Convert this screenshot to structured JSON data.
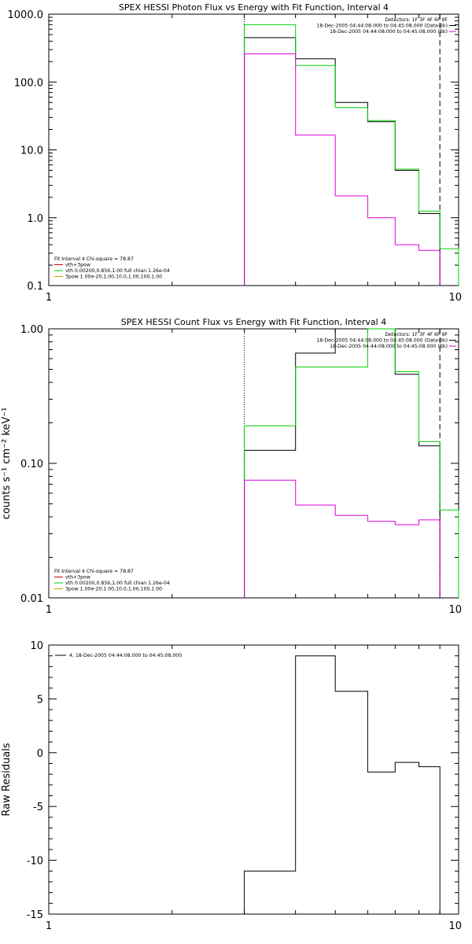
{
  "colors": {
    "observed": "#000000",
    "model": "#00d000",
    "background": "#e000e0",
    "red": "#d00000",
    "orange": "#d0a000"
  },
  "chart_data": [
    {
      "type": "line",
      "title": "SPEX HESSI Photon Flux vs Energy with Fit Function, Interval 4",
      "xlabel": "",
      "ylabel": "",
      "xscale": "log",
      "yscale": "log",
      "xlim": [
        1,
        10
      ],
      "ylim": [
        0.1,
        1000
      ],
      "x_tick_labels": [
        "1",
        "10"
      ],
      "y_tick_labels": [
        "0.1",
        "1.0",
        "10.0",
        "100.0",
        "1000.0"
      ],
      "edges": [
        3,
        4,
        5,
        6,
        7,
        8,
        9,
        10
      ],
      "vlines": [
        {
          "x": 3,
          "style": "dotted"
        },
        {
          "x": 9,
          "style": "dashed"
        }
      ],
      "series": [
        {
          "name": "black",
          "values": [
            450,
            220,
            50,
            26,
            5.0,
            1.15
          ]
        },
        {
          "name": "green",
          "values": [
            700,
            175,
            42,
            27,
            5.2,
            1.25,
            0.35
          ]
        },
        {
          "name": "magenta",
          "values": [
            260,
            16.5,
            2.1,
            1.0,
            0.4,
            0.33
          ]
        }
      ],
      "legend_top": [
        "Detectors: 1F 3F 4F 6F 9F",
        "18-Dec-2005 04:44:08.000 to 04:45:08.000 (Data-Bk)",
        "18-Dec-2005 04:44:08.000 to 04:45:08.000 (Bk)"
      ],
      "legend_bottom": [
        "Fit Interval 4   Chi-square = 78.87",
        "vth+3pow",
        "vth 0.00200,0.856,1.00   full chian 1.26e-04",
        "3pow 1.00e-20,1.00,10.0,1.00,100,1.00"
      ]
    },
    {
      "type": "line",
      "title": "SPEX HESSI Count Flux vs Energy with Fit Function, Interval 4",
      "xlabel": "",
      "ylabel": "counts s⁻¹ cm⁻² keV⁻¹",
      "xscale": "log",
      "yscale": "log",
      "xlim": [
        1,
        10
      ],
      "ylim": [
        0.01,
        1.0
      ],
      "x_tick_labels": [
        "1",
        "10"
      ],
      "y_tick_labels": [
        "0.01",
        "0.10",
        "1.00"
      ],
      "edges": [
        3,
        4,
        5,
        6,
        7,
        8,
        9,
        10
      ],
      "vlines": [
        {
          "x": 3,
          "style": "dotted"
        },
        {
          "x": 9,
          "style": "dashed"
        }
      ],
      "series": [
        {
          "name": "black",
          "values": [
            0.125,
            0.66,
            1.0,
            1.0,
            0.46,
            0.135
          ]
        },
        {
          "name": "green",
          "values": [
            0.19,
            0.52,
            0.52,
            1.0,
            0.48,
            0.145,
            0.045
          ]
        },
        {
          "name": "magenta",
          "values": [
            0.075,
            0.049,
            0.041,
            0.037,
            0.035,
            0.038
          ]
        }
      ],
      "legend_top": [
        "Detectors: 1F 3F 4F 6F 9F",
        "18-Dec-2005 04:44:08.000 to 04:45:08.000 (Data-Bk)",
        "18-Dec-2005 04:44:08.000 to 04:45:08.000 (Bk)"
      ],
      "legend_bottom": [
        "Fit Interval 4   Chi-square = 78.87",
        "vth+3pow",
        "vth 0.00200,0.856,1.00   full chian 1.26e-04",
        "3pow 1.00e-20,1.00,10.0,1.00,100,1.00"
      ]
    },
    {
      "type": "line",
      "title": "",
      "xlabel": "",
      "ylabel": "Raw Residuals",
      "xscale": "log",
      "yscale": "linear",
      "xlim": [
        1,
        10
      ],
      "ylim": [
        -15,
        10
      ],
      "x_tick_labels": [
        "1",
        "10"
      ],
      "y_tick_labels": [
        "-15",
        "-10",
        "-5",
        "0",
        "5",
        "10"
      ],
      "edges": [
        3,
        4,
        5,
        6,
        7,
        8,
        9
      ],
      "series": [
        {
          "name": "black",
          "values": [
            -11,
            9,
            5.7,
            -1.8,
            -0.9,
            -1.3
          ]
        }
      ],
      "legend_top": [
        "4, 18-Dec-2005 04:44:08.000 to 04:45:08.000"
      ]
    }
  ]
}
